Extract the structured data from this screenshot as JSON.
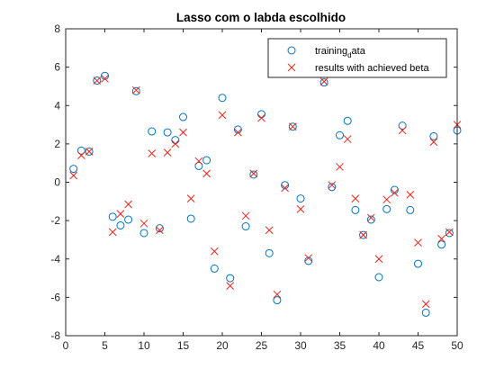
{
  "chart_data": {
    "type": "scatter",
    "title": "Lasso com o labda escolhido",
    "xlabel": "",
    "ylabel": "",
    "xlim": [
      0,
      50
    ],
    "ylim": [
      -8,
      8
    ],
    "x_ticks": [
      0,
      5,
      10,
      15,
      20,
      25,
      30,
      35,
      40,
      45,
      50
    ],
    "y_ticks": [
      -8,
      -6,
      -4,
      -2,
      0,
      2,
      4,
      6,
      8
    ],
    "grid": false,
    "legend_position": "top-right",
    "series": [
      {
        "name": "training_data",
        "legend_label_main": "training",
        "legend_label_sub": "d",
        "legend_label_rest": "ata",
        "marker": "circle",
        "color": "#0072BD",
        "x": [
          1,
          2,
          3,
          4,
          5,
          6,
          7,
          8,
          9,
          10,
          11,
          12,
          13,
          14,
          15,
          16,
          17,
          18,
          19,
          20,
          21,
          22,
          23,
          24,
          25,
          26,
          27,
          28,
          29,
          30,
          31,
          32,
          33,
          34,
          35,
          36,
          37,
          38,
          39,
          40,
          41,
          42,
          43,
          44,
          45,
          46,
          47,
          48,
          49,
          50
        ],
        "y": [
          0.7,
          1.65,
          1.6,
          5.3,
          5.55,
          -1.8,
          -2.25,
          -1.95,
          4.75,
          -2.65,
          2.65,
          -2.4,
          2.6,
          2.2,
          3.4,
          -1.9,
          0.85,
          1.15,
          -4.5,
          4.4,
          -5.0,
          2.75,
          -2.3,
          0.4,
          3.55,
          -3.7,
          -6.15,
          -0.15,
          2.9,
          -0.85,
          -4.1,
          6.1,
          5.2,
          -0.25,
          2.45,
          3.2,
          -1.45,
          -2.75,
          -1.95,
          -4.95,
          -1.4,
          -0.4,
          2.95,
          -1.45,
          -4.25,
          -6.8,
          2.4,
          -3.25,
          -2.65,
          2.7
        ]
      },
      {
        "name": "results with achieved beta",
        "marker": "x",
        "color": "#D95319",
        "x": [
          1,
          2,
          3,
          4,
          5,
          6,
          7,
          8,
          9,
          10,
          11,
          12,
          13,
          14,
          15,
          16,
          17,
          18,
          19,
          20,
          21,
          22,
          23,
          24,
          25,
          26,
          27,
          28,
          29,
          30,
          31,
          32,
          33,
          34,
          35,
          36,
          37,
          38,
          39,
          40,
          41,
          42,
          43,
          44,
          45,
          46,
          47,
          48,
          49,
          50
        ],
        "y": [
          0.35,
          1.4,
          1.6,
          5.3,
          5.4,
          -2.6,
          -1.65,
          -1.15,
          4.8,
          -2.15,
          1.5,
          -2.5,
          1.55,
          2.0,
          2.6,
          -0.85,
          1.1,
          0.45,
          -3.6,
          3.5,
          -5.4,
          2.6,
          -1.75,
          0.45,
          3.35,
          -2.5,
          -5.85,
          -0.3,
          2.9,
          -1.4,
          -3.95,
          6.25,
          5.25,
          -0.15,
          0.8,
          2.25,
          -0.85,
          -2.75,
          -1.85,
          -4.0,
          -0.9,
          -0.55,
          2.7,
          -0.65,
          -3.15,
          -6.35,
          2.1,
          -2.95,
          -2.6,
          3.0
        ]
      }
    ]
  }
}
